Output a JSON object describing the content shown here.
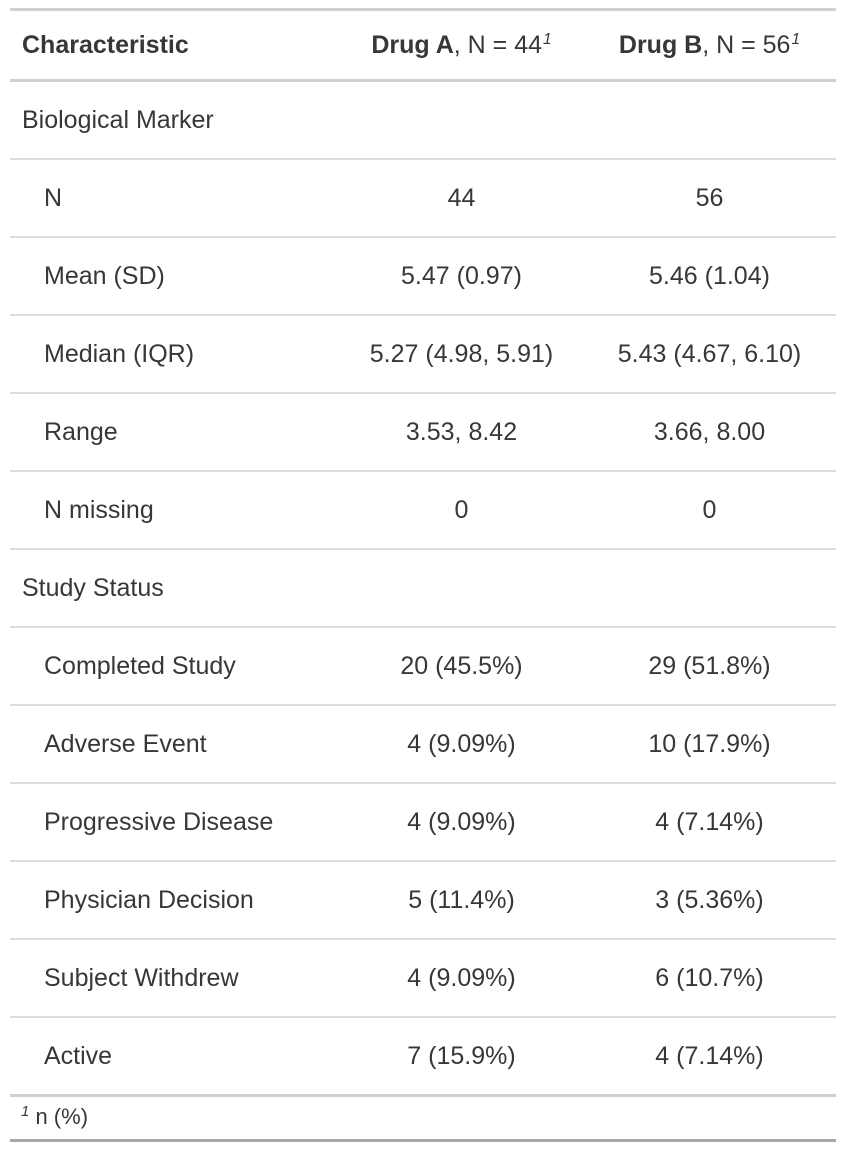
{
  "chart_data": {
    "type": "table",
    "header": {
      "characteristic": "Characteristic",
      "groups": [
        {
          "drug": "Drug A",
          "n_label": ", N = 44",
          "footnote_mark": "1"
        },
        {
          "drug": "Drug B",
          "n_label": ", N = 56",
          "footnote_mark": "1"
        }
      ]
    },
    "sections": [
      {
        "label": "Biological Marker",
        "rows": [
          {
            "label": "N",
            "a": "44",
            "b": "56"
          },
          {
            "label": "Mean (SD)",
            "a": "5.47 (0.97)",
            "b": "5.46 (1.04)"
          },
          {
            "label": "Median (IQR)",
            "a": "5.27 (4.98, 5.91)",
            "b": "5.43 (4.67, 6.10)"
          },
          {
            "label": "Range",
            "a": "3.53, 8.42",
            "b": "3.66, 8.00"
          },
          {
            "label": "N missing",
            "a": "0",
            "b": "0"
          }
        ]
      },
      {
        "label": "Study Status",
        "rows": [
          {
            "label": "Completed Study",
            "a": "20 (45.5%)",
            "b": "29 (51.8%)"
          },
          {
            "label": "Adverse Event",
            "a": "4 (9.09%)",
            "b": "10 (17.9%)"
          },
          {
            "label": "Progressive Disease",
            "a": "4 (9.09%)",
            "b": "4 (7.14%)"
          },
          {
            "label": "Physician Decision",
            "a": "5 (11.4%)",
            "b": "3 (5.36%)"
          },
          {
            "label": "Subject Withdrew",
            "a": "4 (9.09%)",
            "b": "6 (10.7%)"
          },
          {
            "label": "Active",
            "a": "7 (15.9%)",
            "b": "4 (7.14%)"
          }
        ]
      }
    ],
    "footnote": {
      "mark": "1",
      "text": "n (%)"
    },
    "layout_hints": {
      "text_color": "#373737",
      "row_separator_color": "#dbdbdb",
      "header_border_color": "#d0d0d0",
      "bottom_border_color": "#a8a8a8"
    }
  }
}
